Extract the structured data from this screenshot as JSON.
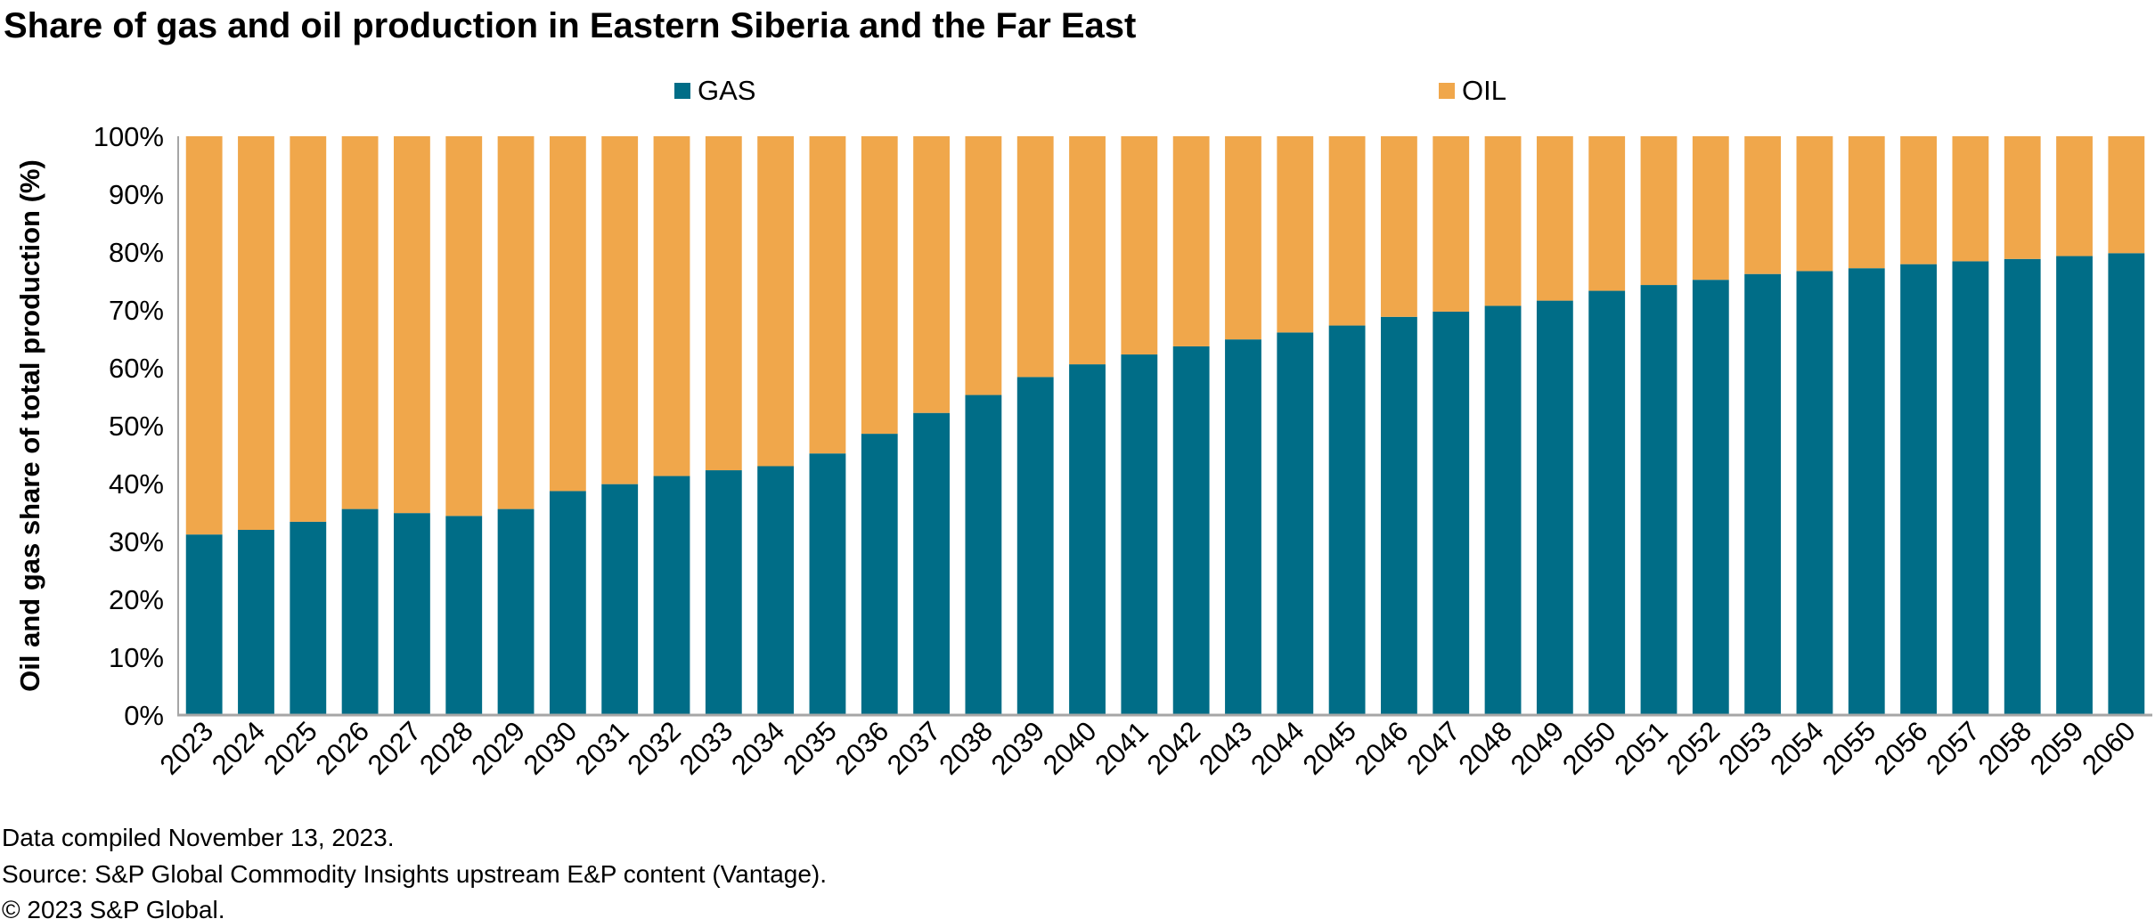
{
  "chart_data": {
    "type": "bar",
    "stacked": true,
    "title": "Share of gas and oil production in Eastern Siberia and the Far East",
    "xlabel": "",
    "ylabel": "Oil and gas share of total production (%)",
    "ylim": [
      0,
      100
    ],
    "yticks": [
      "0%",
      "10%",
      "20%",
      "30%",
      "40%",
      "50%",
      "60%",
      "70%",
      "80%",
      "90%",
      "100%"
    ],
    "legend_position": "top",
    "categories": [
      "2023",
      "2024",
      "2025",
      "2026",
      "2027",
      "2028",
      "2029",
      "2030",
      "2031",
      "2032",
      "2033",
      "2034",
      "2035",
      "2036",
      "2037",
      "2038",
      "2039",
      "2040",
      "2041",
      "2042",
      "2043",
      "2044",
      "2045",
      "2046",
      "2047",
      "2048",
      "2049",
      "2050",
      "2051",
      "2052",
      "2053",
      "2054",
      "2055",
      "2056",
      "2057",
      "2058",
      "2059",
      "2060"
    ],
    "series": [
      {
        "name": "GAS",
        "color": "#006d87",
        "values": [
          31.2,
          32.0,
          33.4,
          35.6,
          34.9,
          34.4,
          35.6,
          38.7,
          39.9,
          41.3,
          42.3,
          43.0,
          45.2,
          48.6,
          52.2,
          55.3,
          58.4,
          60.6,
          62.3,
          63.7,
          64.9,
          66.1,
          67.3,
          68.8,
          69.7,
          70.7,
          71.6,
          73.3,
          74.3,
          75.2,
          76.2,
          76.7,
          77.2,
          77.9,
          78.4,
          78.8,
          79.3,
          79.8
        ]
      },
      {
        "name": "OIL",
        "color": "#f0a74b",
        "values": [
          68.8,
          68.0,
          66.6,
          64.4,
          65.1,
          65.6,
          64.4,
          61.3,
          60.1,
          58.7,
          57.7,
          57.0,
          54.8,
          51.4,
          47.8,
          44.7,
          41.6,
          39.4,
          37.7,
          36.3,
          35.1,
          33.9,
          32.7,
          31.2,
          30.3,
          29.3,
          28.4,
          26.7,
          25.7,
          24.8,
          23.8,
          23.3,
          22.8,
          22.1,
          21.6,
          21.2,
          20.7,
          20.2
        ]
      }
    ]
  },
  "footer": {
    "line1": "Data compiled November 13, 2023.",
    "line2": "Source: S&P Global Commodity Insights upstream E&P content (Vantage).",
    "line3": "© 2023 S&P Global."
  }
}
